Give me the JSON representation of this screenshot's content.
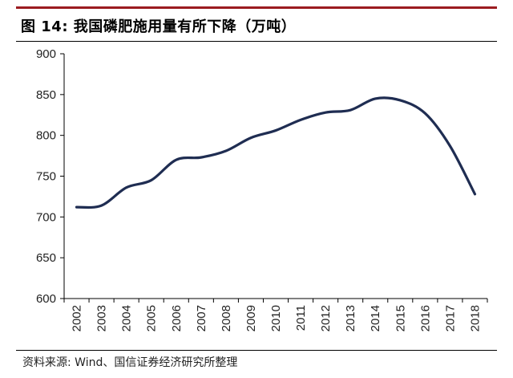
{
  "chart_data": {
    "type": "line",
    "title": "图 14:  我国磷肥施用量有所下降（万吨）",
    "categories": [
      "2002",
      "2003",
      "2004",
      "2005",
      "2006",
      "2007",
      "2008",
      "2009",
      "2010",
      "2011",
      "2012",
      "2013",
      "2014",
      "2015",
      "2016",
      "2017",
      "2018"
    ],
    "series": [
      {
        "values": [
          712,
          714,
          736,
          745,
          770,
          773,
          781,
          797,
          806,
          819,
          828,
          831,
          845,
          843,
          827,
          787,
          728
        ]
      }
    ],
    "ylim": [
      600,
      900
    ],
    "yticks": [
      600,
      650,
      700,
      750,
      800,
      850,
      900
    ],
    "xlabel": "",
    "ylabel": "",
    "grid": false,
    "line_color": "#1f2d52"
  },
  "source": "资料来源: Wind、国信证券经济研究所整理"
}
